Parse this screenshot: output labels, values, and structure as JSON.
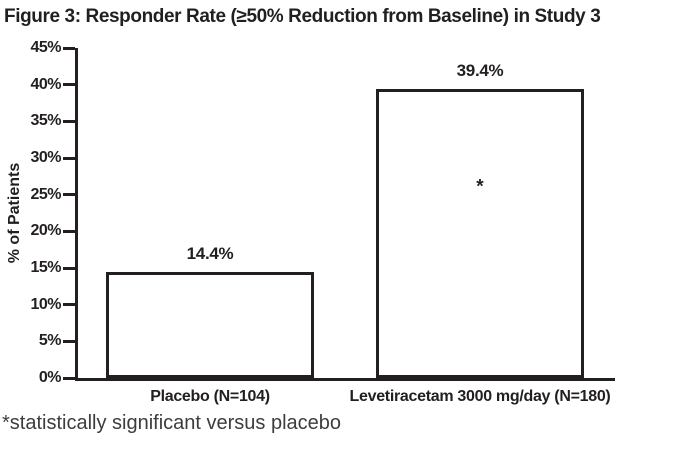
{
  "title": "Figure 3: Responder Rate (≥50% Reduction from Baseline) in Study 3",
  "footnote": "*statistically significant versus placebo",
  "chart_data": {
    "type": "bar",
    "title": "Figure 3: Responder Rate (≥50% Reduction from Baseline) in Study 3",
    "xlabel": "",
    "ylabel": "% of Patients",
    "ylim": [
      0,
      45
    ],
    "ytick_step": 5,
    "ytick_suffix": "%",
    "grid": false,
    "legend": "none",
    "categories": [
      "Placebo (N=104)",
      "Levetiracetam 3000 mg/day (N=180)"
    ],
    "values": [
      14.4,
      39.4
    ],
    "value_labels": [
      "14.4%",
      "39.4%"
    ],
    "annotations": [
      {
        "text": "*",
        "category_index": 1,
        "y": 26,
        "meaning": "statistically significant versus placebo"
      }
    ]
  },
  "colors": {
    "background": "#ffffff",
    "text": "#231f20",
    "bar_fill": "#ffffff",
    "bar_border": "#231f20",
    "footnote_text": "#3d3d3d"
  }
}
